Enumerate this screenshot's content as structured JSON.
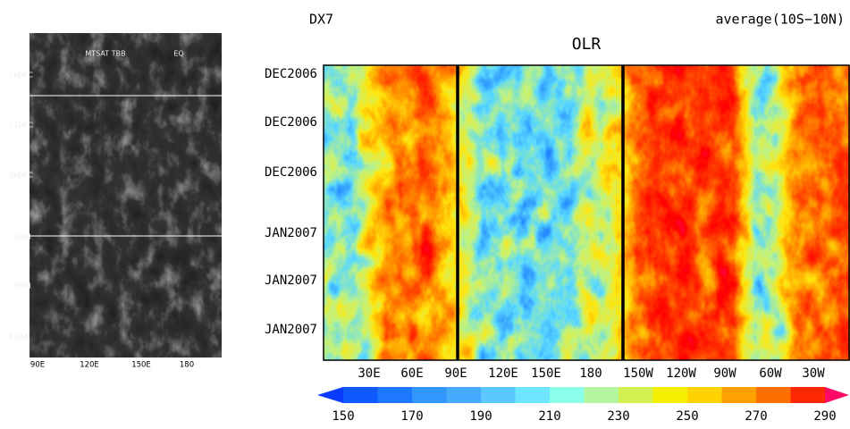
{
  "left_panel": {
    "title": "MTSAT TBB",
    "title_right": "EQ",
    "y_labels": [
      "16DEC",
      "21DEC",
      "26DEC",
      "1JAN",
      "6JAN",
      "11JAN"
    ],
    "x_labels": [
      "90E",
      "120E",
      "150E",
      "180"
    ]
  },
  "right_panel": {
    "header_left": "DX7",
    "header_right": "average(10S−10N)",
    "title": "OLR",
    "y_labels": [
      "DEC2006",
      "DEC2006",
      "DEC2006",
      "JAN2007",
      "JAN2007",
      "JAN2007"
    ],
    "x_labels": [
      "30E",
      "60E",
      "90E",
      "120E",
      "150E",
      "180",
      "150W",
      "120W",
      "90W",
      "60W",
      "30W"
    ]
  },
  "colorbar": {
    "labels": [
      150,
      170,
      190,
      210,
      230,
      250,
      270,
      290
    ]
  }
}
